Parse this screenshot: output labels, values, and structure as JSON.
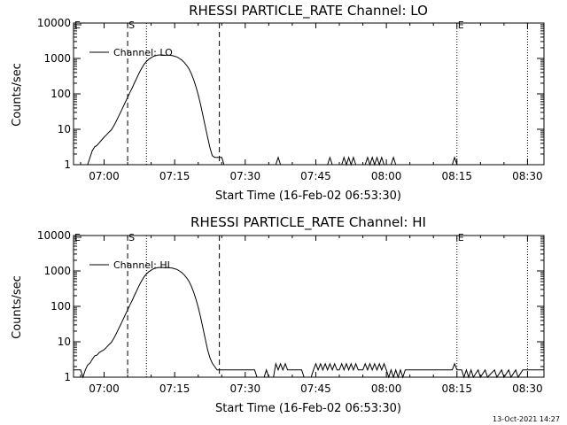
{
  "timestamp": "13-Oct-2021 14:27",
  "chart_data": [
    {
      "type": "line",
      "title": "RHESSI PARTICLE_RATE Channel: LO",
      "xlabel": "Start Time (16-Feb-02 06:53:30)",
      "ylabel": "Counts/sec",
      "yscale": "log",
      "ylim": [
        1,
        10000
      ],
      "xlim": [
        "06:53:30",
        "08:33:30"
      ],
      "x_ticks": [
        "07:00",
        "07:15",
        "07:30",
        "07:45",
        "08:00",
        "08:15",
        "08:30"
      ],
      "y_ticks": [
        "1",
        "10",
        "100",
        "1000",
        "10000"
      ],
      "legend": {
        "position": "top-left",
        "entries": [
          "Channel: LO"
        ]
      },
      "markers": [
        {
          "label": "E",
          "time": "06:53:30",
          "style": "dotted"
        },
        {
          "label": "S",
          "time": "07:05:00",
          "style": "dashed"
        },
        {
          "label": "",
          "time": "07:09:00",
          "style": "dotted"
        },
        {
          "label": "",
          "time": "07:24:30",
          "style": "dashed"
        },
        {
          "label": "E",
          "time": "08:15:00",
          "style": "dotted"
        },
        {
          "label": "",
          "time": "08:30:00",
          "style": "dotted"
        }
      ],
      "series": [
        {
          "name": "Channel: LO",
          "points": [
            [
              "06:56:30",
              1
            ],
            [
              "06:57:00",
              1.6
            ],
            [
              "06:57:30",
              2.5
            ],
            [
              "06:58:00",
              3.2
            ],
            [
              "06:58:30",
              3.5
            ],
            [
              "06:59:00",
              4.2
            ],
            [
              "06:59:30",
              5
            ],
            [
              "07:00:00",
              6
            ],
            [
              "07:00:30",
              7
            ],
            [
              "07:01:00",
              8.2
            ],
            [
              "07:01:30",
              9.5
            ],
            [
              "07:02:00",
              12
            ],
            [
              "07:02:30",
              16
            ],
            [
              "07:03:00",
              22
            ],
            [
              "07:03:30",
              30
            ],
            [
              "07:04:00",
              42
            ],
            [
              "07:04:30",
              58
            ],
            [
              "07:05:00",
              80
            ],
            [
              "07:05:30",
              110
            ],
            [
              "07:06:00",
              150
            ],
            [
              "07:06:30",
              210
            ],
            [
              "07:07:00",
              290
            ],
            [
              "07:07:30",
              400
            ],
            [
              "07:08:00",
              530
            ],
            [
              "07:08:30",
              680
            ],
            [
              "07:09:00",
              820
            ],
            [
              "07:09:30",
              950
            ],
            [
              "07:10:00",
              1050
            ],
            [
              "07:10:30",
              1150
            ],
            [
              "07:11:00",
              1200
            ],
            [
              "07:11:30",
              1250
            ],
            [
              "07:12:00",
              1250
            ],
            [
              "07:12:30",
              1250
            ],
            [
              "07:13:00",
              1220
            ],
            [
              "07:13:30",
              1250
            ],
            [
              "07:14:00",
              1220
            ],
            [
              "07:14:30",
              1200
            ],
            [
              "07:15:00",
              1150
            ],
            [
              "07:15:30",
              1100
            ],
            [
              "07:16:00",
              1000
            ],
            [
              "07:16:30",
              900
            ],
            [
              "07:17:00",
              780
            ],
            [
              "07:17:30",
              650
            ],
            [
              "07:18:00",
              520
            ],
            [
              "07:18:30",
              380
            ],
            [
              "07:19:00",
              260
            ],
            [
              "07:19:30",
              160
            ],
            [
              "07:20:00",
              95
            ],
            [
              "07:20:30",
              50
            ],
            [
              "07:21:00",
              25
            ],
            [
              "07:21:30",
              12
            ],
            [
              "07:22:00",
              6
            ],
            [
              "07:22:30",
              3
            ],
            [
              "07:23:00",
              1.8
            ],
            [
              "07:23:30",
              1.6
            ],
            [
              "07:24:00",
              1.6
            ],
            [
              "07:24:30",
              1.6
            ],
            [
              "07:25:00",
              1.6
            ],
            [
              "07:25:30",
              1
            ],
            [
              "07:36:30",
              1
            ],
            [
              "07:37:00",
              1.6
            ],
            [
              "07:37:30",
              1
            ],
            [
              "07:47:30",
              1
            ],
            [
              "07:48:00",
              1.6
            ],
            [
              "07:48:30",
              1
            ],
            [
              "07:50:30",
              1
            ],
            [
              "07:51:00",
              1.6
            ],
            [
              "07:51:30",
              1
            ],
            [
              "07:52:00",
              1.6
            ],
            [
              "07:52:30",
              1
            ],
            [
              "07:53:00",
              1.6
            ],
            [
              "07:53:30",
              1
            ],
            [
              "07:55:30",
              1
            ],
            [
              "07:56:00",
              1.6
            ],
            [
              "07:56:30",
              1
            ],
            [
              "07:57:00",
              1.6
            ],
            [
              "07:57:30",
              1
            ],
            [
              "07:58:00",
              1.6
            ],
            [
              "07:58:30",
              1
            ],
            [
              "07:59:00",
              1.6
            ],
            [
              "07:59:30",
              1
            ],
            [
              "08:01:00",
              1
            ],
            [
              "08:01:30",
              1.6
            ],
            [
              "08:02:00",
              1
            ],
            [
              "08:14:00",
              1
            ],
            [
              "08:14:30",
              1.6
            ],
            [
              "08:15:00",
              1
            ]
          ]
        }
      ]
    },
    {
      "type": "line",
      "title": "RHESSI PARTICLE_RATE Channel: HI",
      "xlabel": "Start Time (16-Feb-02 06:53:30)",
      "ylabel": "Counts/sec",
      "yscale": "log",
      "ylim": [
        1,
        10000
      ],
      "xlim": [
        "06:53:30",
        "08:33:30"
      ],
      "x_ticks": [
        "07:00",
        "07:15",
        "07:30",
        "07:45",
        "08:00",
        "08:15",
        "08:30"
      ],
      "y_ticks": [
        "1",
        "10",
        "100",
        "1000",
        "10000"
      ],
      "legend": {
        "position": "top-left",
        "entries": [
          "Channel: HI"
        ]
      },
      "markers": [
        {
          "label": "E",
          "time": "06:53:30",
          "style": "dotted"
        },
        {
          "label": "S",
          "time": "07:05:00",
          "style": "dashed"
        },
        {
          "label": "",
          "time": "07:09:00",
          "style": "dotted"
        },
        {
          "label": "",
          "time": "07:24:30",
          "style": "dashed"
        },
        {
          "label": "E",
          "time": "08:15:00",
          "style": "dotted"
        },
        {
          "label": "",
          "time": "08:30:00",
          "style": "dotted"
        }
      ],
      "series": [
        {
          "name": "Channel: HI",
          "points": [
            [
              "06:53:30",
              1.6
            ],
            [
              "06:55:00",
              1.6
            ],
            [
              "06:55:30",
              1
            ],
            [
              "06:56:00",
              1.6
            ],
            [
              "06:56:30",
              2.2
            ],
            [
              "06:57:00",
              2.5
            ],
            [
              "06:57:30",
              3.2
            ],
            [
              "06:58:00",
              4
            ],
            [
              "06:58:30",
              4.2
            ],
            [
              "06:59:00",
              5
            ],
            [
              "06:59:30",
              5.5
            ],
            [
              "07:00:00",
              6
            ],
            [
              "07:00:30",
              7
            ],
            [
              "07:01:00",
              8.2
            ],
            [
              "07:01:30",
              9.5
            ],
            [
              "07:02:00",
              12
            ],
            [
              "07:02:30",
              16
            ],
            [
              "07:03:00",
              22
            ],
            [
              "07:03:30",
              30
            ],
            [
              "07:04:00",
              42
            ],
            [
              "07:04:30",
              58
            ],
            [
              "07:05:00",
              80
            ],
            [
              "07:05:30",
              110
            ],
            [
              "07:06:00",
              150
            ],
            [
              "07:06:30",
              210
            ],
            [
              "07:07:00",
              290
            ],
            [
              "07:07:30",
              400
            ],
            [
              "07:08:00",
              530
            ],
            [
              "07:08:30",
              680
            ],
            [
              "07:09:00",
              820
            ],
            [
              "07:09:30",
              950
            ],
            [
              "07:10:00",
              1050
            ],
            [
              "07:10:30",
              1150
            ],
            [
              "07:11:00",
              1200
            ],
            [
              "07:11:30",
              1250
            ],
            [
              "07:12:00",
              1250
            ],
            [
              "07:12:30",
              1250
            ],
            [
              "07:13:00",
              1220
            ],
            [
              "07:13:30",
              1250
            ],
            [
              "07:14:00",
              1220
            ],
            [
              "07:14:30",
              1200
            ],
            [
              "07:15:00",
              1150
            ],
            [
              "07:15:30",
              1100
            ],
            [
              "07:16:00",
              1000
            ],
            [
              "07:16:30",
              900
            ],
            [
              "07:17:00",
              780
            ],
            [
              "07:17:30",
              650
            ],
            [
              "07:18:00",
              520
            ],
            [
              "07:18:30",
              380
            ],
            [
              "07:19:00",
              260
            ],
            [
              "07:19:30",
              160
            ],
            [
              "07:20:00",
              95
            ],
            [
              "07:20:30",
              50
            ],
            [
              "07:21:00",
              25
            ],
            [
              "07:21:30",
              12
            ],
            [
              "07:22:00",
              6
            ],
            [
              "07:22:30",
              3.5
            ],
            [
              "07:23:00",
              2.5
            ],
            [
              "07:23:30",
              2
            ],
            [
              "07:24:00",
              1.6
            ],
            [
              "07:25:00",
              1.6
            ],
            [
              "07:25:30",
              1.6
            ],
            [
              "07:26:00",
              1.6
            ],
            [
              "07:32:00",
              1.6
            ],
            [
              "07:32:30",
              1
            ],
            [
              "07:34:00",
              1
            ],
            [
              "07:34:30",
              1.6
            ],
            [
              "07:35:00",
              1
            ],
            [
              "07:36:00",
              1
            ],
            [
              "07:36:30",
              2.4
            ],
            [
              "07:37:00",
              1.6
            ],
            [
              "07:37:30",
              2.4
            ],
            [
              "07:38:00",
              1.6
            ],
            [
              "07:38:30",
              2.4
            ],
            [
              "07:39:00",
              1.6
            ],
            [
              "07:42:00",
              1.6
            ],
            [
              "07:42:30",
              1
            ],
            [
              "07:44:00",
              1
            ],
            [
              "07:44:30",
              1.6
            ],
            [
              "07:45:00",
              2.4
            ],
            [
              "07:45:30",
              1.6
            ],
            [
              "07:46:00",
              2.4
            ],
            [
              "07:46:30",
              1.6
            ],
            [
              "07:47:00",
              2.4
            ],
            [
              "07:47:30",
              1.6
            ],
            [
              "07:48:00",
              2.4
            ],
            [
              "07:48:30",
              1.6
            ],
            [
              "07:49:00",
              2.4
            ],
            [
              "07:49:30",
              1.6
            ],
            [
              "07:50:00",
              1.6
            ],
            [
              "07:50:30",
              2.4
            ],
            [
              "07:51:00",
              1.6
            ],
            [
              "07:51:30",
              2.4
            ],
            [
              "07:52:00",
              1.6
            ],
            [
              "07:52:30",
              2.4
            ],
            [
              "07:53:00",
              1.6
            ],
            [
              "07:53:30",
              2.4
            ],
            [
              "07:54:00",
              1.6
            ],
            [
              "07:55:00",
              1.6
            ],
            [
              "07:55:30",
              2.4
            ],
            [
              "07:56:00",
              1.6
            ],
            [
              "07:56:30",
              2.4
            ],
            [
              "07:57:00",
              1.6
            ],
            [
              "07:57:30",
              2.4
            ],
            [
              "07:58:00",
              1.6
            ],
            [
              "07:58:30",
              2.4
            ],
            [
              "07:59:00",
              1.6
            ],
            [
              "07:59:30",
              2.4
            ],
            [
              "08:00:00",
              1.6
            ],
            [
              "08:00:30",
              1
            ],
            [
              "08:01:00",
              1.6
            ],
            [
              "08:01:30",
              1
            ],
            [
              "08:02:00",
              1.6
            ],
            [
              "08:02:30",
              1
            ],
            [
              "08:03:00",
              1.6
            ],
            [
              "08:03:30",
              1
            ],
            [
              "08:04:00",
              1.6
            ],
            [
              "08:14:00",
              1.6
            ],
            [
              "08:14:30",
              2.4
            ],
            [
              "08:15:00",
              1.6
            ],
            [
              "08:16:00",
              1.6
            ],
            [
              "08:16:30",
              1
            ],
            [
              "08:17:00",
              1.6
            ],
            [
              "08:17:30",
              1
            ],
            [
              "08:18:00",
              1.6
            ],
            [
              "08:18:30",
              1
            ],
            [
              "08:19:30",
              1.6
            ],
            [
              "08:20:00",
              1
            ],
            [
              "08:21:00",
              1.6
            ],
            [
              "08:21:30",
              1
            ],
            [
              "08:23:00",
              1.6
            ],
            [
              "08:23:30",
              1
            ],
            [
              "08:24:30",
              1.6
            ],
            [
              "08:25:00",
              1
            ],
            [
              "08:26:00",
              1.6
            ],
            [
              "08:26:30",
              1
            ],
            [
              "08:27:30",
              1.6
            ],
            [
              "08:28:00",
              1
            ],
            [
              "08:29:00",
              1.6
            ],
            [
              "08:33:30",
              1.6
            ]
          ]
        }
      ]
    }
  ]
}
